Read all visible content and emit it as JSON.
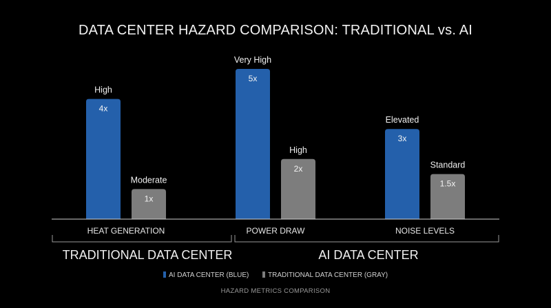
{
  "chart_data": {
    "type": "bar",
    "title": "DATA CENTER HAZARD COMPARISON: TRADITIONAL vs. AI",
    "categories": [
      "HEAT GENERATION",
      "POWER DRAW",
      "NOISE LEVELS"
    ],
    "series": [
      {
        "name": "AI DATA CENTER (BLUE)",
        "color": "#2460ab",
        "values": [
          4,
          5,
          3
        ],
        "value_labels": [
          "4x",
          "5x",
          "3x"
        ],
        "level_labels": [
          "High",
          "Very High",
          "Elevated"
        ]
      },
      {
        "name": "TRADITIONAL DATA CENTER (GRAY)",
        "color": "#7d7d7d",
        "values": [
          1,
          2,
          1.5
        ],
        "value_labels": [
          "1x",
          "2x",
          "1.5x"
        ],
        "level_labels": [
          "Moderate",
          "High",
          "Standard"
        ]
      }
    ],
    "group_labels": [
      "TRADITIONAL DATA CENTER",
      "AI DATA CENTER"
    ],
    "footer": "HAZARD METRICS COMPARISON",
    "ylim": [
      0,
      5
    ],
    "grid": false,
    "legend_position": "bottom-center"
  }
}
